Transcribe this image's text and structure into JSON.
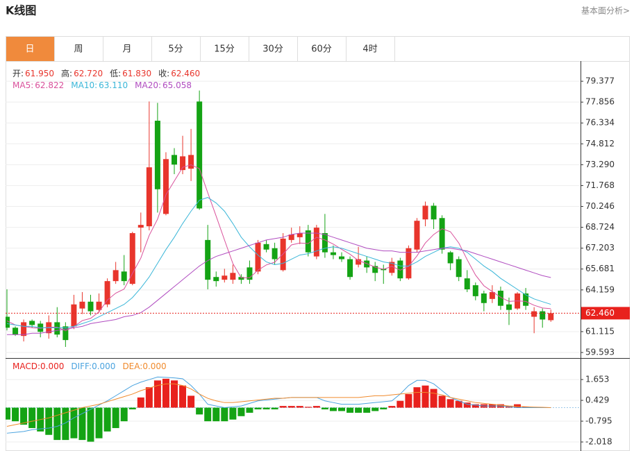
{
  "header": {
    "title": "K线图",
    "link": "基本面分析>"
  },
  "tabs": {
    "items": [
      "日",
      "周",
      "月",
      "5分",
      "15分",
      "30分",
      "60分",
      "4时"
    ],
    "active": 0
  },
  "chart_data": [
    {
      "type": "candlestick",
      "ohlc_readout": [
        {
          "name": "开:",
          "value": "61.950"
        },
        {
          "name": "高:",
          "value": "62.720"
        },
        {
          "name": "低:",
          "value": "61.830"
        },
        {
          "name": "收:",
          "value": "62.460"
        }
      ],
      "up_color": "#e8352c",
      "down_color": "#14a314",
      "open": [
        62.2,
        61.4,
        60.8,
        61.9,
        61.7,
        61.0,
        61.8,
        61.5,
        61.5,
        62.8,
        63.3,
        62.7,
        63.1,
        64.8,
        65.5,
        64.6,
        68.7,
        68.8,
        76.5,
        69.7,
        74.0,
        72.9,
        73.0,
        77.9,
        67.8,
        65.1,
        64.9,
        64.9,
        65.1,
        65.8,
        65.5,
        67.5,
        67.2,
        65.6,
        67.8,
        68.0,
        68.5,
        66.6,
        68.3,
        66.9,
        66.6,
        66.4,
        66.0,
        66.3,
        65.9,
        65.7,
        65.4,
        66.3,
        65.0,
        67.1,
        69.3,
        70.3,
        69.4,
        66.9,
        66.4,
        65.0,
        64.5,
        63.9,
        63.5,
        64.1,
        63.1,
        62.8,
        63.9,
        62.2,
        62.6,
        61.95
      ],
      "high": [
        64.2,
        61.5,
        62.0,
        62.0,
        61.9,
        62.3,
        62.9,
        61.8,
        63.8,
        64.0,
        63.8,
        63.9,
        65.0,
        66.2,
        66.7,
        68.4,
        69.8,
        77.9,
        77.8,
        74.2,
        74.5,
        75.4,
        75.9,
        78.7,
        68.9,
        65.5,
        65.7,
        66.0,
        65.3,
        66.3,
        67.8,
        67.8,
        67.6,
        68.3,
        68.7,
        68.8,
        68.9,
        68.9,
        69.7,
        67.4,
        66.9,
        66.6,
        67.3,
        66.6,
        66.2,
        66.0,
        66.5,
        66.5,
        67.4,
        69.4,
        70.6,
        70.5,
        69.6,
        67.0,
        66.6,
        65.6,
        64.7,
        64.1,
        64.5,
        64.4,
        63.6,
        64.0,
        64.3,
        62.9,
        62.8,
        62.72
      ],
      "low": [
        61.2,
        60.8,
        60.4,
        61.4,
        60.7,
        60.6,
        60.7,
        60.0,
        61.3,
        62.4,
        62.3,
        62.5,
        62.9,
        64.6,
        64.5,
        64.5,
        66.9,
        68.5,
        69.8,
        69.6,
        72.6,
        72.6,
        72.1,
        70.0,
        64.2,
        64.4,
        64.7,
        64.6,
        64.6,
        64.6,
        65.3,
        66.9,
        66.0,
        65.5,
        67.6,
        67.5,
        66.6,
        66.4,
        66.5,
        66.4,
        66.2,
        64.9,
        65.8,
        65.4,
        64.8,
        64.6,
        65.2,
        64.8,
        64.9,
        66.9,
        68.8,
        68.6,
        66.8,
        65.6,
        64.8,
        64.0,
        63.4,
        62.6,
        63.2,
        62.7,
        61.6,
        62.7,
        62.7,
        61.0,
        61.4,
        61.83
      ],
      "close": [
        61.4,
        60.9,
        61.8,
        61.6,
        61.1,
        61.8,
        60.9,
        60.5,
        63.1,
        63.3,
        62.6,
        63.3,
        64.8,
        65.6,
        64.8,
        68.3,
        68.9,
        73.1,
        71.5,
        73.7,
        73.3,
        73.9,
        74.0,
        70.1,
        64.9,
        64.8,
        65.2,
        65.4,
        64.9,
        64.9,
        67.6,
        67.1,
        66.4,
        67.9,
        68.2,
        68.3,
        66.9,
        68.7,
        66.9,
        66.7,
        66.4,
        65.1,
        66.4,
        65.8,
        65.4,
        65.6,
        66.2,
        65.0,
        67.2,
        69.2,
        70.3,
        69.3,
        67.1,
        66.1,
        65.1,
        64.2,
        63.7,
        63.2,
        64.0,
        63.0,
        62.7,
        63.9,
        63.0,
        62.6,
        62.0,
        62.46
      ],
      "series": [
        {
          "name": "MA5:",
          "current": "62.822",
          "color": "#d9509b",
          "values": [
            61.9,
            61.6,
            61.5,
            61.4,
            61.36,
            61.44,
            61.44,
            61.18,
            61.48,
            61.92,
            62.08,
            62.56,
            63.42,
            63.92,
            64.22,
            65.36,
            66.48,
            68.14,
            69.32,
            71.1,
            72.1,
            73.1,
            73.28,
            73.0,
            71.24,
            69.54,
            67.8,
            66.08,
            65.04,
            65.04,
            65.6,
            65.98,
            66.18,
            66.78,
            67.44,
            67.58,
            67.54,
            68.0,
            67.8,
            67.5,
            67.12,
            66.76,
            66.3,
            66.08,
            65.82,
            65.66,
            65.88,
            65.6,
            65.88,
            66.64,
            67.58,
            68.2,
            68.62,
            68.4,
            67.58,
            66.36,
            65.24,
            64.46,
            64.04,
            63.62,
            63.32,
            63.36,
            63.32,
            63.04,
            62.84,
            62.79
          ]
        },
        {
          "name": "MA10:",
          "current": "63.110",
          "color": "#3ab6d8",
          "values": [
            61.7,
            61.6,
            61.5,
            61.5,
            61.4,
            61.4,
            61.4,
            61.4,
            61.5,
            61.7,
            61.9,
            62.2,
            62.5,
            62.8,
            63.1,
            63.6,
            64.3,
            65.1,
            66.1,
            67.1,
            68.0,
            69.0,
            69.9,
            70.7,
            70.9,
            70.5,
            69.9,
            69.0,
            68.0,
            67.3,
            66.7,
            66.2,
            66.0,
            66.1,
            66.4,
            66.7,
            66.8,
            67.0,
            67.2,
            67.3,
            67.2,
            67.0,
            66.8,
            66.6,
            66.4,
            66.2,
            66.1,
            65.9,
            65.9,
            66.2,
            66.6,
            66.9,
            67.2,
            67.3,
            67.2,
            66.9,
            66.4,
            65.9,
            65.5,
            65.0,
            64.6,
            64.2,
            63.8,
            63.5,
            63.3,
            63.11
          ]
        },
        {
          "name": "MA20:",
          "current": "65.058",
          "color": "#b04cc0",
          "values": [
            60.9,
            60.9,
            60.9,
            61.0,
            61.0,
            61.1,
            61.2,
            61.3,
            61.4,
            61.5,
            61.7,
            61.8,
            61.9,
            62.0,
            62.2,
            62.3,
            62.5,
            62.9,
            63.4,
            63.9,
            64.4,
            64.9,
            65.4,
            65.9,
            66.3,
            66.6,
            66.8,
            67.0,
            67.2,
            67.4,
            67.6,
            67.8,
            67.9,
            68.0,
            68.2,
            68.3,
            68.3,
            68.3,
            68.2,
            68.0,
            67.8,
            67.6,
            67.4,
            67.2,
            67.1,
            67.0,
            67.0,
            66.9,
            66.9,
            66.9,
            67.0,
            67.1,
            67.2,
            67.2,
            67.1,
            67.0,
            66.8,
            66.6,
            66.4,
            66.2,
            66.0,
            65.8,
            65.6,
            65.4,
            65.2,
            65.06
          ]
        }
      ],
      "current_price": {
        "value": 62.46,
        "label": "62.460"
      },
      "ylim": [
        59.19,
        80.85
      ],
      "yticks": [
        79.377,
        77.856,
        76.334,
        74.812,
        {
          "value": 73.29,
          "label": "73.290"
        },
        71.768,
        70.246,
        68.724,
        67.203,
        65.681,
        64.159,
        61.115,
        59.593
      ],
      "grid": true
    },
    {
      "type": "macd",
      "up_color": "#e8211d",
      "down_color": "#14a314",
      "series": [
        {
          "name": "MACD:",
          "current": "0.000",
          "color": "#e8211d",
          "style": "bar",
          "values": [
            -0.7,
            -0.8,
            -1.0,
            -1.2,
            -1.4,
            -1.6,
            -1.9,
            -1.9,
            -1.8,
            -1.9,
            -2.0,
            -1.8,
            -1.4,
            -1.2,
            -0.8,
            -0.1,
            0.6,
            1.2,
            1.6,
            1.7,
            1.6,
            1.3,
            0.7,
            -0.4,
            -0.8,
            -0.8,
            -0.8,
            -0.7,
            -0.5,
            -0.3,
            -0.1,
            -0.1,
            -0.1,
            0.1,
            0.1,
            0.1,
            0.05,
            0.1,
            -0.1,
            -0.2,
            -0.2,
            -0.3,
            -0.3,
            -0.3,
            -0.2,
            -0.1,
            0.1,
            0.4,
            0.8,
            1.2,
            1.3,
            1.1,
            0.7,
            0.5,
            0.4,
            0.3,
            0.2,
            0.2,
            0.2,
            0.2,
            0.1,
            0.2,
            0.05,
            0.03,
            0.02,
            0.0
          ]
        },
        {
          "name": "DIFF:",
          "current": "0.000",
          "color": "#4aa3df",
          "style": "line",
          "values": [
            -1.5,
            -1.45,
            -1.4,
            -1.3,
            -1.25,
            -1.2,
            -1.1,
            -0.9,
            -0.6,
            -0.35,
            -0.1,
            0.15,
            0.4,
            0.7,
            1.0,
            1.3,
            1.5,
            1.65,
            1.8,
            1.78,
            1.75,
            1.7,
            1.3,
            0.8,
            0.2,
            0.1,
            0.0,
            0.05,
            0.1,
            0.25,
            0.4,
            0.45,
            0.5,
            0.55,
            0.6,
            0.6,
            0.6,
            0.6,
            0.4,
            0.3,
            0.2,
            0.2,
            0.2,
            0.25,
            0.3,
            0.35,
            0.4,
            0.8,
            1.3,
            1.6,
            1.6,
            1.4,
            1.0,
            0.6,
            0.4,
            0.2,
            0.15,
            0.1,
            0.1,
            0.1,
            0.05,
            0.0,
            0.0,
            0.0,
            0.0,
            0.0
          ]
        },
        {
          "name": "DEA:",
          "current": "0.000",
          "color": "#f08a2c",
          "style": "line",
          "values": [
            -1.1,
            -1.0,
            -0.9,
            -0.8,
            -0.7,
            -0.6,
            -0.45,
            -0.3,
            -0.15,
            0.0,
            0.1,
            0.2,
            0.35,
            0.5,
            0.65,
            0.8,
            1.0,
            1.15,
            1.3,
            1.4,
            1.4,
            1.3,
            1.1,
            0.8,
            0.55,
            0.4,
            0.3,
            0.3,
            0.35,
            0.4,
            0.45,
            0.5,
            0.55,
            0.55,
            0.6,
            0.6,
            0.6,
            0.6,
            0.6,
            0.6,
            0.6,
            0.6,
            0.6,
            0.65,
            0.7,
            0.7,
            0.75,
            0.8,
            0.85,
            0.9,
            0.9,
            0.85,
            0.75,
            0.6,
            0.5,
            0.4,
            0.3,
            0.25,
            0.2,
            0.15,
            0.1,
            0.08,
            0.05,
            0.03,
            0.02,
            0.0
          ]
        }
      ],
      "ylim": [
        -2.548,
        2.877
      ],
      "yticks": [
        1.653,
        0.429,
        -0.795,
        -2.018
      ],
      "grid": true
    }
  ]
}
